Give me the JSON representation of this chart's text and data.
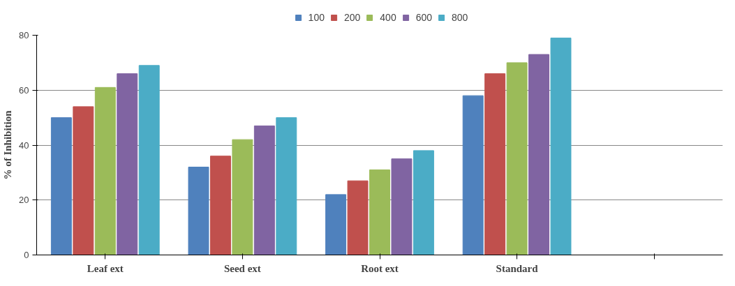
{
  "chart_data": {
    "type": "bar",
    "ylabel": "% of Inhibition",
    "categories": [
      "Leaf ext",
      "Seed ext",
      "Root ext",
      "Standard",
      null
    ],
    "series": [
      {
        "name": "100",
        "color": "#4f81bd",
        "values": [
          50,
          32,
          22,
          58,
          null
        ]
      },
      {
        "name": "200",
        "color": "#c0504d",
        "values": [
          54,
          36,
          27,
          66,
          null
        ]
      },
      {
        "name": "400",
        "color": "#9bbb59",
        "values": [
          61,
          42,
          31,
          70,
          null
        ]
      },
      {
        "name": "600",
        "color": "#8064a2",
        "values": [
          66,
          47,
          35,
          73,
          null
        ]
      },
      {
        "name": "800",
        "color": "#4bacc6",
        "values": [
          69,
          50,
          38,
          79,
          null
        ]
      }
    ],
    "ylim": [
      0,
      80
    ],
    "yticks": [
      0,
      20,
      40,
      60,
      80
    ],
    "grid": "y",
    "legend": "top"
  }
}
